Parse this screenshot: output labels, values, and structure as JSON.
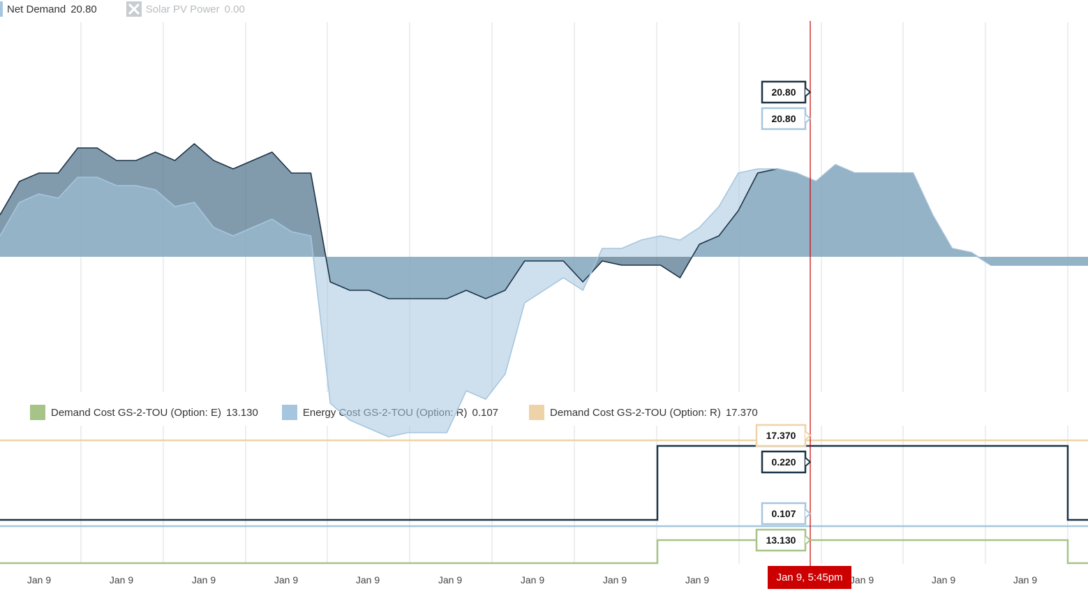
{
  "legend_top": [
    {
      "label": "Net Demand",
      "value": "20.80",
      "color": "#5d7f95",
      "enabled": true
    },
    {
      "label": "Solar PV Power",
      "value": "0.00",
      "color": "#9aa3a8",
      "enabled": false,
      "icon": "close-icon"
    }
  ],
  "legend_bottom": [
    {
      "label": "Demand Cost GS-2-TOU (Option: E)",
      "value": "13.130",
      "color": "#a6c487"
    },
    {
      "label": "Energy Cost GS-2-TOU (Option: R)",
      "value": "0.107",
      "color": "#a6c6df"
    },
    {
      "label": "Demand Cost GS-2-TOU (Option: R)",
      "value": "17.370",
      "color": "#efd3a8"
    }
  ],
  "cursor": {
    "label": "Jan 9, 5:45pm",
    "color": "#cc0000"
  },
  "x_tick_labels": [
    "Jan 9",
    "Jan 9",
    "Jan 9",
    "Jan 9",
    "Jan 9",
    "Jan 9",
    "Jan 9",
    "Jan 9",
    "Jan 9",
    "Jan 9",
    "Jan 9",
    "Jan 9",
    "Jan 9"
  ],
  "tooltips": {
    "upper_dark": "20.80",
    "upper_light": "20.80",
    "lower_orange": "17.370",
    "lower_dark": "0.220",
    "lower_blue": "0.107",
    "lower_green": "13.130"
  },
  "chart_data": [
    {
      "type": "area",
      "series": [
        {
          "name": "Net Demand",
          "color": "#5d7f95",
          "values": [
            10,
            18,
            20,
            20,
            26,
            26,
            23,
            23,
            25,
            23,
            27,
            23,
            21,
            23,
            25,
            20,
            20,
            -6,
            -8,
            -8,
            -10,
            -10,
            -10,
            -10,
            -8,
            -10,
            -8,
            -1,
            -1,
            -1,
            -6,
            -1,
            -2,
            -2,
            -2,
            -5,
            3,
            5,
            11,
            20,
            21,
            20,
            18,
            22,
            20,
            20,
            20,
            20,
            10,
            2,
            1,
            -2,
            -2,
            -2,
            -2,
            -2,
            -2
          ]
        },
        {
          "name": "Solar PV Power",
          "color": "#a6c6df",
          "values": [
            5,
            13,
            15,
            14,
            19,
            19,
            17,
            17,
            16,
            12,
            13,
            7,
            5,
            7,
            9,
            6,
            5,
            -35,
            -39,
            -41,
            -43,
            -42,
            -42,
            -42,
            -32,
            -34,
            -28,
            -11,
            -8,
            -5,
            -8,
            2,
            2,
            4,
            5,
            4,
            7,
            12,
            20,
            21,
            21,
            20,
            18,
            22,
            20,
            20,
            20,
            20,
            10,
            2,
            1,
            -2,
            -2,
            -2,
            -2,
            -2,
            -2
          ]
        }
      ]
    },
    {
      "type": "line",
      "series": [
        {
          "name": "Demand Cost GS-2-TOU (Option: R)",
          "color": "#efd3a8",
          "value": 17.37
        },
        {
          "color": "#1c3347",
          "segments": [
            {
              "value": 0.107
            },
            {
              "value": 0.22
            },
            {
              "value": 0.107
            }
          ]
        },
        {
          "name": "Energy Cost GS-2-TOU (Option: R)",
          "color": "#a6c6df",
          "value": 0.107
        },
        {
          "name": "Demand Cost GS-2-TOU (Option: E)",
          "color": "#a6c487",
          "segments": [
            {
              "value": 0
            },
            {
              "value": 13.13
            },
            {
              "value": 0
            }
          ]
        }
      ]
    }
  ]
}
